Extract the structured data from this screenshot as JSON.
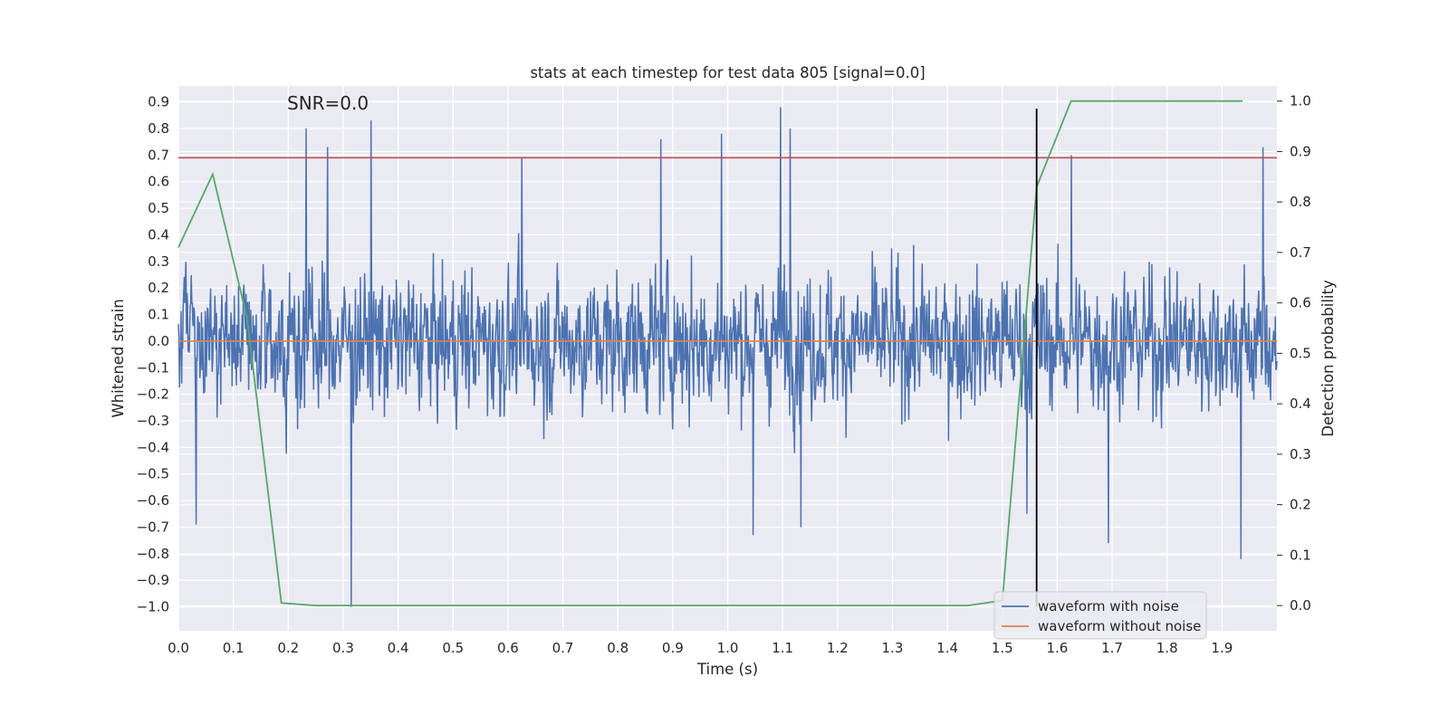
{
  "chart_data": {
    "type": "line",
    "title": "stats at each timestep for test data 805 [signal=0.0]",
    "xlabel": "Time (s)",
    "ylabel": "Whitened strain",
    "y2label": "Detection probability",
    "annotation": "SNR=0.0",
    "xlim": [
      0.0,
      2.0
    ],
    "ylim": [
      -1.09,
      0.96
    ],
    "y2lim": [
      -0.05,
      1.03
    ],
    "x_ticks": [
      "0.0",
      "0.1",
      "0.2",
      "0.3",
      "0.4",
      "0.5",
      "0.6",
      "0.7",
      "0.8",
      "0.9",
      "1.0",
      "1.1",
      "1.2",
      "1.3",
      "1.4",
      "1.5",
      "1.6",
      "1.7",
      "1.8",
      "1.9"
    ],
    "y_ticks": [
      "0.9",
      "0.8",
      "0.7",
      "0.6",
      "0.5",
      "0.4",
      "0.3",
      "0.2",
      "0.1",
      "0.0",
      "−0.1",
      "−0.2",
      "−0.3",
      "−0.4",
      "−0.5",
      "−0.6",
      "−0.7",
      "−0.8",
      "−0.9",
      "−1.0"
    ],
    "y2_ticks": [
      "1.0",
      "0.9",
      "0.8",
      "0.7",
      "0.6",
      "0.5",
      "0.4",
      "0.3",
      "0.2",
      "0.1",
      "0.0"
    ],
    "grid": true,
    "legend_position": "lower right",
    "series": [
      {
        "name": "waveform with noise",
        "color": "#4c72b0",
        "axis": "left",
        "kind": "noise",
        "n_points": 2048,
        "x_range": [
          0.0,
          2.0
        ],
        "approx_std": 0.3,
        "peaks": [
          {
            "x": 0.233,
            "y": 0.8
          },
          {
            "x": 0.272,
            "y": 0.73
          },
          {
            "x": 0.351,
            "y": 0.83
          },
          {
            "x": 0.625,
            "y": 0.69
          },
          {
            "x": 0.878,
            "y": 0.76
          },
          {
            "x": 0.989,
            "y": 0.78
          },
          {
            "x": 1.096,
            "y": 0.88
          },
          {
            "x": 1.114,
            "y": 0.8
          },
          {
            "x": 1.626,
            "y": 0.7
          },
          {
            "x": 1.975,
            "y": 0.73
          },
          {
            "x": 0.315,
            "y": -1.0
          },
          {
            "x": 1.046,
            "y": -0.73
          },
          {
            "x": 1.133,
            "y": -0.7
          },
          {
            "x": 1.693,
            "y": -0.76
          },
          {
            "x": 1.935,
            "y": -0.82
          },
          {
            "x": 0.032,
            "y": -0.69
          },
          {
            "x": 1.545,
            "y": -0.65
          }
        ]
      },
      {
        "name": "waveform without noise",
        "color": "#dd8452",
        "axis": "left",
        "x": [
          0.0,
          2.0
        ],
        "y": [
          0.0,
          0.0
        ]
      },
      {
        "name": "",
        "color": "#55a868",
        "axis": "right",
        "x": [
          0.0,
          0.0625,
          0.125,
          0.1875,
          0.25,
          1.4375,
          1.5,
          1.5625,
          1.625,
          1.9375
        ],
        "y": [
          0.71,
          0.855,
          0.57,
          0.005,
          0.0,
          0.0,
          0.01,
          0.83,
          1.0,
          1.0
        ]
      }
    ],
    "threshold": {
      "y": 0.69,
      "color": "#c44e52",
      "axis": "left"
    },
    "marker_line": {
      "x": 1.5625,
      "y_top": 0.875,
      "y_bottom": -1.0,
      "color": "#000000"
    }
  }
}
